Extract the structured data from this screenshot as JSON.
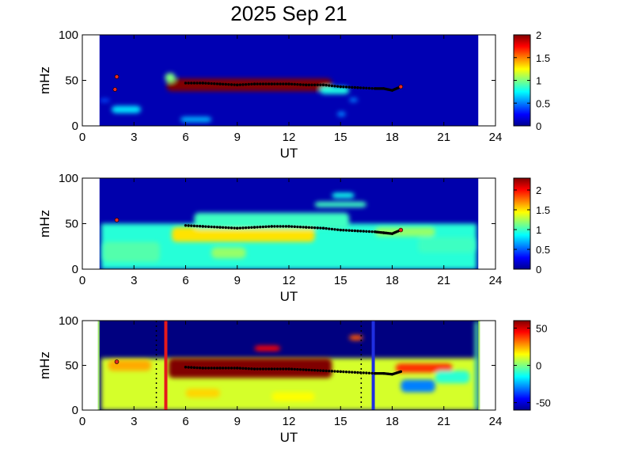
{
  "figure": {
    "title": "2025 Sep 21"
  },
  "chart_data": [
    {
      "type": "heatmap",
      "xlabel": "UT",
      "ylabel": "mHz",
      "xlim": [
        0,
        24
      ],
      "ylim": [
        0,
        100
      ],
      "xticks": [
        "0",
        "3",
        "6",
        "9",
        "12",
        "15",
        "18",
        "21",
        "24"
      ],
      "yticks": [
        "0",
        "50",
        "100"
      ],
      "colorbar": {
        "range": [
          0,
          2
        ],
        "ticks": [
          "0",
          "0.5",
          "1",
          "1.5",
          "2"
        ],
        "colormap": "jet"
      },
      "data_window_hours": [
        1,
        23
      ],
      "blobs": [
        {
          "x1": 4.9,
          "x2": 14.5,
          "y1": 38,
          "y2": 52,
          "v": 2.0
        },
        {
          "x1": 4.8,
          "x2": 5.4,
          "y1": 48,
          "y2": 58,
          "v": 1.0
        },
        {
          "x1": 13.8,
          "x2": 15.5,
          "y1": 35,
          "y2": 43,
          "v": 0.8
        },
        {
          "x1": 1.7,
          "x2": 3.4,
          "y1": 14,
          "y2": 22,
          "v": 0.7
        },
        {
          "x1": 5.7,
          "x2": 7.5,
          "y1": 4,
          "y2": 10,
          "v": 0.6
        },
        {
          "x1": 14.8,
          "x2": 15.3,
          "y1": 10,
          "y2": 16,
          "v": 0.5
        },
        {
          "x1": 15.5,
          "x2": 16.0,
          "y1": 26,
          "y2": 31,
          "v": 0.5
        },
        {
          "x1": 1.0,
          "x2": 1.6,
          "y1": 26,
          "y2": 30,
          "v": 0.4
        }
      ],
      "peak_trace": [
        [
          6.0,
          47
        ],
        [
          7,
          47
        ],
        [
          8,
          46
        ],
        [
          9,
          45
        ],
        [
          10,
          46
        ],
        [
          11,
          46
        ],
        [
          12,
          46
        ],
        [
          13,
          45
        ],
        [
          14,
          45
        ],
        [
          15,
          43
        ],
        [
          16,
          42
        ],
        [
          17,
          41
        ],
        [
          17.5,
          41
        ],
        [
          18.0,
          39
        ],
        [
          18.5,
          43
        ]
      ],
      "red_marks": [
        [
          2.0,
          54
        ],
        [
          1.9,
          40
        ],
        [
          18.5,
          43
        ]
      ]
    },
    {
      "type": "heatmap",
      "xlabel": "UT",
      "ylabel": "mHz",
      "xlim": [
        0,
        24
      ],
      "ylim": [
        0,
        100
      ],
      "xticks": [
        "0",
        "3",
        "6",
        "9",
        "12",
        "15",
        "18",
        "21",
        "24"
      ],
      "yticks": [
        "0",
        "50",
        "100"
      ],
      "colorbar": {
        "range": [
          0,
          2.3
        ],
        "ticks": [
          "0",
          "0.5",
          "1",
          "1.5",
          "2"
        ],
        "colormap": "jet"
      },
      "data_window_hours": [
        1,
        23
      ],
      "blobs": [
        {
          "x1": 5.2,
          "x2": 13.5,
          "y1": 30,
          "y2": 46,
          "v": 1.5
        },
        {
          "x1": 6.5,
          "x2": 15.5,
          "y1": 44,
          "y2": 62,
          "v": 1.0
        },
        {
          "x1": 13.5,
          "x2": 16.5,
          "y1": 68,
          "y2": 74,
          "v": 1.0
        },
        {
          "x1": 14.5,
          "x2": 15.8,
          "y1": 78,
          "y2": 84,
          "v": 0.9
        },
        {
          "x1": 1.2,
          "x2": 4.5,
          "y1": 8,
          "y2": 30,
          "v": 1.05
        },
        {
          "x1": 7.5,
          "x2": 9.5,
          "y1": 12,
          "y2": 24,
          "v": 1.2
        },
        {
          "x1": 17.0,
          "x2": 20.5,
          "y1": 36,
          "y2": 46,
          "v": 1.2
        },
        {
          "x1": 19.5,
          "x2": 22.8,
          "y1": 18,
          "y2": 35,
          "v": 1.0
        }
      ],
      "peak_trace": [
        [
          6.0,
          48
        ],
        [
          7,
          47
        ],
        [
          8,
          46
        ],
        [
          9,
          45
        ],
        [
          10,
          46
        ],
        [
          11,
          47
        ],
        [
          12,
          47
        ],
        [
          13,
          46
        ],
        [
          14,
          45
        ],
        [
          15,
          43
        ],
        [
          16,
          42
        ],
        [
          17,
          41
        ],
        [
          17.5,
          40
        ],
        [
          18.0,
          39
        ],
        [
          18.5,
          43
        ]
      ],
      "red_marks": [
        [
          2.0,
          54
        ],
        [
          18.5,
          43
        ]
      ]
    },
    {
      "type": "heatmap",
      "xlabel": "UT",
      "ylabel": "mHz",
      "xlim": [
        0,
        24
      ],
      "ylim": [
        0,
        100
      ],
      "xticks": [
        "0",
        "3",
        "6",
        "9",
        "12",
        "15",
        "18",
        "21",
        "24"
      ],
      "yticks": [
        "0",
        "50",
        "100"
      ],
      "colorbar": {
        "range": [
          -60,
          60
        ],
        "ticks": [
          "-50",
          "0",
          "50"
        ],
        "colormap": "jet"
      },
      "data_window_hours": [
        1,
        23
      ],
      "blobs": [
        {
          "x1": 5.0,
          "x2": 14.5,
          "y1": 36,
          "y2": 58,
          "v": 60
        },
        {
          "x1": 10.0,
          "x2": 11.5,
          "y1": 66,
          "y2": 72,
          "v": 45
        },
        {
          "x1": 15.5,
          "x2": 16.3,
          "y1": 78,
          "y2": 84,
          "v": 35
        },
        {
          "x1": 18.2,
          "x2": 21.5,
          "y1": 42,
          "y2": 52,
          "v": 40
        },
        {
          "x1": 1.5,
          "x2": 4.0,
          "y1": 44,
          "y2": 56,
          "v": 25
        },
        {
          "x1": 18.5,
          "x2": 20.5,
          "y1": 20,
          "y2": 34,
          "v": -30
        },
        {
          "x1": 20.5,
          "x2": 22.5,
          "y1": 30,
          "y2": 44,
          "v": -10
        },
        {
          "x1": 11.0,
          "x2": 13.5,
          "y1": 10,
          "y2": 20,
          "v": 15
        },
        {
          "x1": 6.0,
          "x2": 8.0,
          "y1": 14,
          "y2": 24,
          "v": 20
        },
        {
          "x1": 22.8,
          "x2": 23.0,
          "y1": 0,
          "y2": 100,
          "v": -5
        }
      ],
      "peak_trace": [
        [
          6.0,
          48
        ],
        [
          7,
          47
        ],
        [
          8,
          47
        ],
        [
          9,
          47
        ],
        [
          10,
          46
        ],
        [
          11,
          46
        ],
        [
          12,
          46
        ],
        [
          13,
          45
        ],
        [
          14,
          44
        ],
        [
          15,
          43
        ],
        [
          16,
          42
        ],
        [
          17,
          41
        ],
        [
          17.5,
          41
        ],
        [
          18.0,
          40
        ],
        [
          18.5,
          43
        ]
      ],
      "red_marks": [
        [
          2.0,
          54
        ]
      ],
      "vertical_markers": [
        {
          "x": 4.85,
          "color": "#e41a1c",
          "style": "solid"
        },
        {
          "x": 16.9,
          "color": "#1f2fe0",
          "style": "solid"
        },
        {
          "x": 4.3,
          "color": "#000000",
          "style": "dotted"
        },
        {
          "x": 16.2,
          "color": "#000000",
          "style": "dotted"
        }
      ]
    }
  ]
}
